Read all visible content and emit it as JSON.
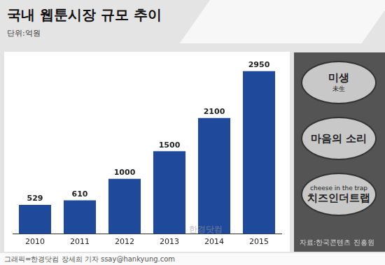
{
  "chart_data": {
    "type": "bar",
    "title": "국내 웹툰시장 규모 추이",
    "subtitle": "단위:억원",
    "categories": [
      "2010",
      "2011",
      "2012",
      "2013",
      "2014",
      "2015"
    ],
    "values": [
      529,
      610,
      1000,
      1500,
      2100,
      2950
    ],
    "color": "#1f4a9b",
    "ylim": [
      0,
      3300
    ],
    "grid": false,
    "data_labels": true,
    "tick_labels": "x",
    "watermark": "한경닷컴"
  },
  "side_panel": {
    "items": [
      {
        "text": "미생",
        "sub": "未生"
      },
      {
        "text": "마음의 소리"
      },
      {
        "text": "치즈인더트랩",
        "sub": "cheese in the trap"
      }
    ],
    "source": "자료:한국콘텐츠 진흥원"
  },
  "credit": "그래픽=한경닷컴 장세희 기자 ssay@hankyung.com"
}
